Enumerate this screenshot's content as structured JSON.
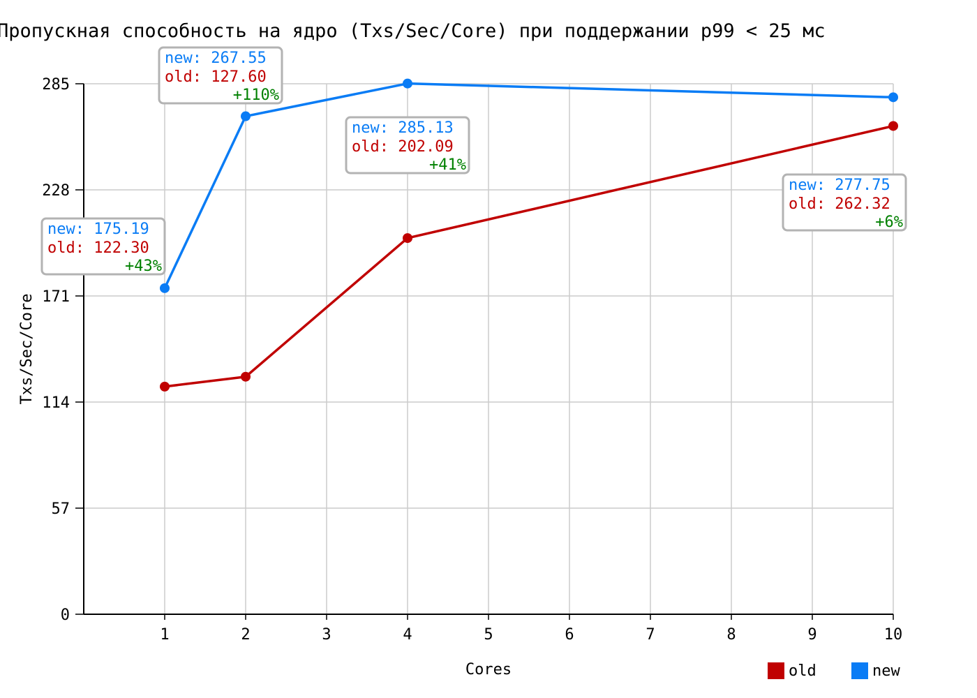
{
  "chart_data": {
    "type": "line",
    "title": "Пропускная способность на ядро (Txs/Sec/Core) при поддержании p99 < 25 мс",
    "xlabel": "Cores",
    "ylabel": "Txs/Sec/Core",
    "x_ticks": [
      "1",
      "2",
      "3",
      "4",
      "5",
      "6",
      "7",
      "8",
      "9",
      "10"
    ],
    "y_ticks": [
      "0",
      "57",
      "114",
      "171",
      "228",
      "285"
    ],
    "xlim": [
      0,
      10
    ],
    "ylim": [
      0,
      285
    ],
    "grid": true,
    "legend_position": "bottom-right",
    "series": [
      {
        "name": "old",
        "color": "#c00000",
        "x": [
          1,
          2,
          4,
          10
        ],
        "values": [
          122.3,
          127.6,
          202.09,
          262.32
        ]
      },
      {
        "name": "new",
        "color": "#0a7cf5",
        "x": [
          1,
          2,
          4,
          10
        ],
        "values": [
          175.19,
          267.55,
          285.13,
          277.75
        ]
      }
    ],
    "annotations": [
      {
        "x": 1,
        "new_text": "new: 175.19",
        "old_text": "old: 122.30",
        "delta_text": "+43%"
      },
      {
        "x": 2,
        "new_text": "new: 267.55",
        "old_text": "old: 127.60",
        "delta_text": "+110%"
      },
      {
        "x": 4,
        "new_text": "new: 285.13",
        "old_text": "old: 202.09",
        "delta_text": "+41%"
      },
      {
        "x": 10,
        "new_text": "new: 277.75",
        "old_text": "old: 262.32",
        "delta_text": "+6%"
      }
    ],
    "colors": {
      "old": "#c00000",
      "new": "#0a7cf5",
      "delta": "#008000",
      "grid": "#cccccc",
      "box_border": "#b3b3b3"
    }
  }
}
